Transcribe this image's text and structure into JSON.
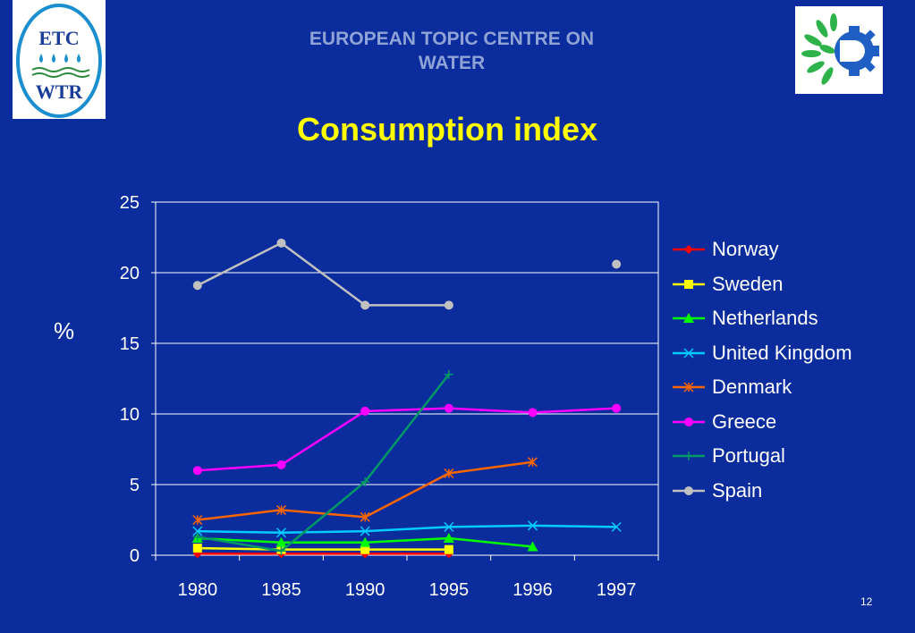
{
  "header": {
    "org_title_line1": "EUROPEAN TOPIC CENTRE ON",
    "org_title_line2": "WATER",
    "slide_title": "Consumption index",
    "logo_left_top": "ETC",
    "logo_left_bottom": "WTR"
  },
  "footer": {
    "page_number": "12"
  },
  "chart_data": {
    "type": "line",
    "title": "",
    "xlabel": "",
    "ylabel": "%",
    "categories": [
      "1980",
      "1985",
      "1990",
      "1995",
      "1996",
      "1997"
    ],
    "ylim": [
      0,
      25
    ],
    "yticks": [
      "0",
      "5",
      "10",
      "15",
      "20",
      "25"
    ],
    "grid": "horizontal",
    "legend": "right",
    "series": [
      {
        "name": "Norway",
        "color": "#ff0000",
        "marker": "diamond",
        "values": [
          0.1,
          0.1,
          0.1,
          0.1,
          null,
          null
        ]
      },
      {
        "name": "Sweden",
        "color": "#ffff00",
        "marker": "square",
        "values": [
          0.5,
          0.4,
          0.4,
          0.4,
          null,
          null
        ]
      },
      {
        "name": "Netherlands",
        "color": "#00ff00",
        "marker": "triangle",
        "values": [
          1.2,
          0.9,
          0.9,
          1.2,
          0.6,
          null
        ]
      },
      {
        "name": "United Kingdom",
        "color": "#00ccff",
        "marker": "x",
        "values": [
          1.7,
          1.6,
          1.7,
          2.0,
          2.1,
          2.0
        ]
      },
      {
        "name": "Denmark",
        "color": "#ff6600",
        "marker": "star",
        "values": [
          2.5,
          3.2,
          2.7,
          5.8,
          6.6,
          null
        ]
      },
      {
        "name": "Greece",
        "color": "#ff00ff",
        "marker": "circle",
        "values": [
          6.0,
          6.4,
          10.2,
          10.4,
          10.1,
          10.4
        ]
      },
      {
        "name": "Portugal",
        "color": "#009966",
        "marker": "plus",
        "values": [
          1.3,
          0.3,
          5.2,
          12.8,
          null,
          null
        ]
      },
      {
        "name": "Spain",
        "color": "#c0c0c0",
        "marker": "circle",
        "values": [
          19.1,
          22.1,
          17.7,
          17.7,
          null,
          20.6
        ]
      }
    ]
  }
}
